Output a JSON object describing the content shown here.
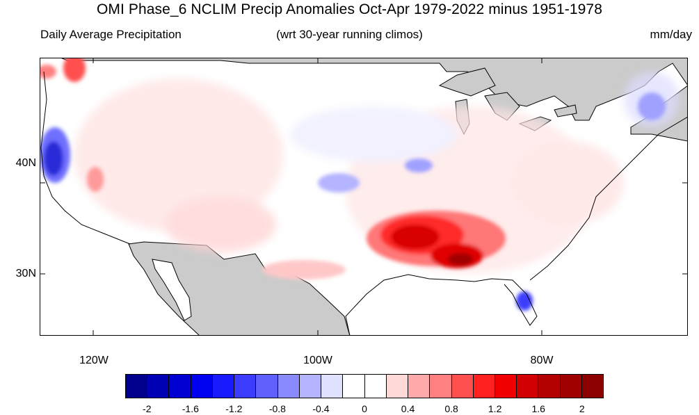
{
  "title": "OMI Phase_6 NCLIM Precip Anomalies Oct-Apr 1979-2022 minus 1951-1978",
  "subtitle_left": "Daily Average Precipitation",
  "subtitle_center": "(wrt 30-year running climos)",
  "subtitle_right": "mm/day",
  "lon_labels": [
    "120W",
    "100W",
    "80W"
  ],
  "lat_labels": [
    "40N",
    "30N"
  ],
  "colorbar": {
    "colors": [
      "#00008c",
      "#0000b4",
      "#0000d2",
      "#0000f0",
      "#1a1aff",
      "#3c3cff",
      "#6060ff",
      "#8a8aff",
      "#b4b4ff",
      "#e0e0ff",
      "#ffffff",
      "#ffffff",
      "#ffd8d8",
      "#ffaaaa",
      "#ff8080",
      "#ff5050",
      "#ff2020",
      "#f00000",
      "#d20000",
      "#b40000",
      "#a00000",
      "#8c0000"
    ],
    "labels": [
      "-2",
      "-1.6",
      "-1.2",
      "-0.8",
      "-0.4",
      "0",
      "0.4",
      "0.8",
      "1.2",
      "1.6",
      "2"
    ]
  },
  "colors": {
    "land_mask": "#cbcbcb",
    "coast": "#000000",
    "state": "#8c8c8c"
  }
}
